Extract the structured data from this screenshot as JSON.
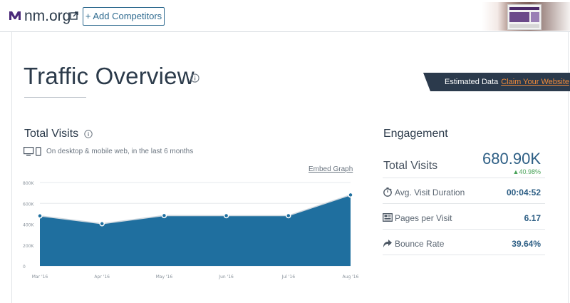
{
  "header": {
    "site_name": "nm.org",
    "add_competitors_label": "+ Add Competitors",
    "logo_icon": "nm-logo-icon",
    "external_link_icon": "external-link-icon"
  },
  "overview": {
    "title": "Traffic Overview",
    "estimated_label": "Estimated Data",
    "claim_link": "Claim Your Website"
  },
  "total_visits": {
    "title": "Total Visits",
    "subtitle": "On desktop & mobile web, in the last 6 months",
    "embed_link": "Embed Graph"
  },
  "chart_data": {
    "type": "area",
    "x": [
      "Mar '16",
      "Apr '16",
      "May '16",
      "Jun '16",
      "Jul '16",
      "Aug '16"
    ],
    "series": [
      {
        "values": [
          480000,
          405000,
          483000,
          482000,
          482000,
          680900
        ]
      }
    ],
    "y_ticks": [
      "0",
      "200K",
      "400K",
      "600K",
      "800K"
    ],
    "ylim": [
      0,
      800000
    ],
    "grid": true,
    "color": "#1f6f9f"
  },
  "engagement": {
    "title": "Engagement",
    "total_visits_label": "Total Visits",
    "total_visits_value": "680.90K",
    "total_visits_change": "40.98%",
    "metrics": [
      {
        "label": "Avg. Visit Duration",
        "value": "00:04:52",
        "icon": "stopwatch-icon"
      },
      {
        "label": "Pages per Visit",
        "value": "6.17",
        "icon": "pages-icon"
      },
      {
        "label": "Bounce Rate",
        "value": "39.64%",
        "icon": "bounce-arrow-icon"
      }
    ]
  }
}
